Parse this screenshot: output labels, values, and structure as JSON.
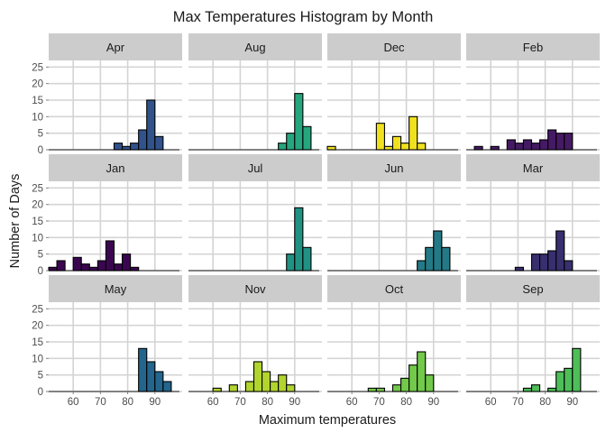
{
  "chart_data": {
    "type": "bar",
    "title": "Max Temperatures Histogram by Month",
    "xlabel": "Maximum temperatures",
    "ylabel": "Number of Days",
    "xlim": [
      51,
      100
    ],
    "ylim": [
      0,
      27
    ],
    "x_ticks": [
      60,
      70,
      80,
      90
    ],
    "y_ticks": [
      0,
      5,
      10,
      15,
      20,
      25
    ],
    "grid": true,
    "bins": [
      52.5,
      55.5,
      58.5,
      61.5,
      64.5,
      67.5,
      70.5,
      73.5,
      76.5,
      79.5,
      82.5,
      85.5,
      88.5,
      91.5,
      94.5,
      97.5
    ],
    "bin_width": 3,
    "panels": [
      {
        "name": "Apr",
        "color": "#31528b",
        "counts": [
          0,
          0,
          0,
          0,
          0,
          0,
          0,
          0,
          2,
          1,
          2,
          6,
          15,
          4,
          0,
          0
        ]
      },
      {
        "name": "Aug",
        "color": "#25a67e",
        "counts": [
          0,
          0,
          0,
          0,
          0,
          0,
          0,
          0,
          0,
          0,
          0,
          2,
          5,
          17,
          7,
          0
        ]
      },
      {
        "name": "Dec",
        "color": "#f0e11f",
        "counts": [
          1,
          0,
          0,
          0,
          0,
          0,
          8,
          1,
          4,
          2,
          10,
          2,
          0,
          0,
          0,
          0
        ]
      },
      {
        "name": "Feb",
        "color": "#451a64",
        "counts": [
          0,
          1,
          0,
          1,
          0,
          3,
          2,
          3,
          2,
          3,
          6,
          5,
          5,
          0,
          0,
          0
        ]
      },
      {
        "name": "Jan",
        "color": "#3b0650",
        "counts": [
          1,
          3,
          0,
          4,
          2,
          1,
          3,
          9,
          2,
          5,
          1,
          0,
          0,
          0,
          0,
          0
        ]
      },
      {
        "name": "Jul",
        "color": "#1f9284",
        "counts": [
          0,
          0,
          0,
          0,
          0,
          0,
          0,
          0,
          0,
          0,
          0,
          0,
          5,
          19,
          7,
          0
        ]
      },
      {
        "name": "Jun",
        "color": "#237a86",
        "counts": [
          0,
          0,
          0,
          0,
          0,
          0,
          0,
          0,
          0,
          0,
          0,
          3,
          7,
          12,
          7,
          0
        ]
      },
      {
        "name": "Mar",
        "color": "#382f6e",
        "counts": [
          0,
          0,
          0,
          0,
          0,
          0,
          1,
          0,
          5,
          5,
          6,
          12,
          3,
          0,
          0,
          0
        ]
      },
      {
        "name": "May",
        "color": "#23658d",
        "counts": [
          0,
          0,
          0,
          0,
          0,
          0,
          0,
          0,
          0,
          0,
          0,
          13,
          9,
          6,
          3,
          0
        ]
      },
      {
        "name": "Nov",
        "color": "#b1d42e",
        "counts": [
          0,
          0,
          0,
          1,
          0,
          2,
          0,
          3,
          9,
          6,
          3,
          5,
          2,
          0,
          0,
          0
        ]
      },
      {
        "name": "Oct",
        "color": "#72c94a",
        "counts": [
          0,
          0,
          0,
          0,
          0,
          1,
          1,
          0,
          2,
          4,
          8,
          12,
          5,
          0,
          0,
          0
        ]
      },
      {
        "name": "Sep",
        "color": "#4dbe58",
        "counts": [
          0,
          0,
          0,
          0,
          0,
          0,
          0,
          1,
          2,
          0,
          1,
          6,
          7,
          13,
          0,
          0
        ]
      }
    ]
  }
}
